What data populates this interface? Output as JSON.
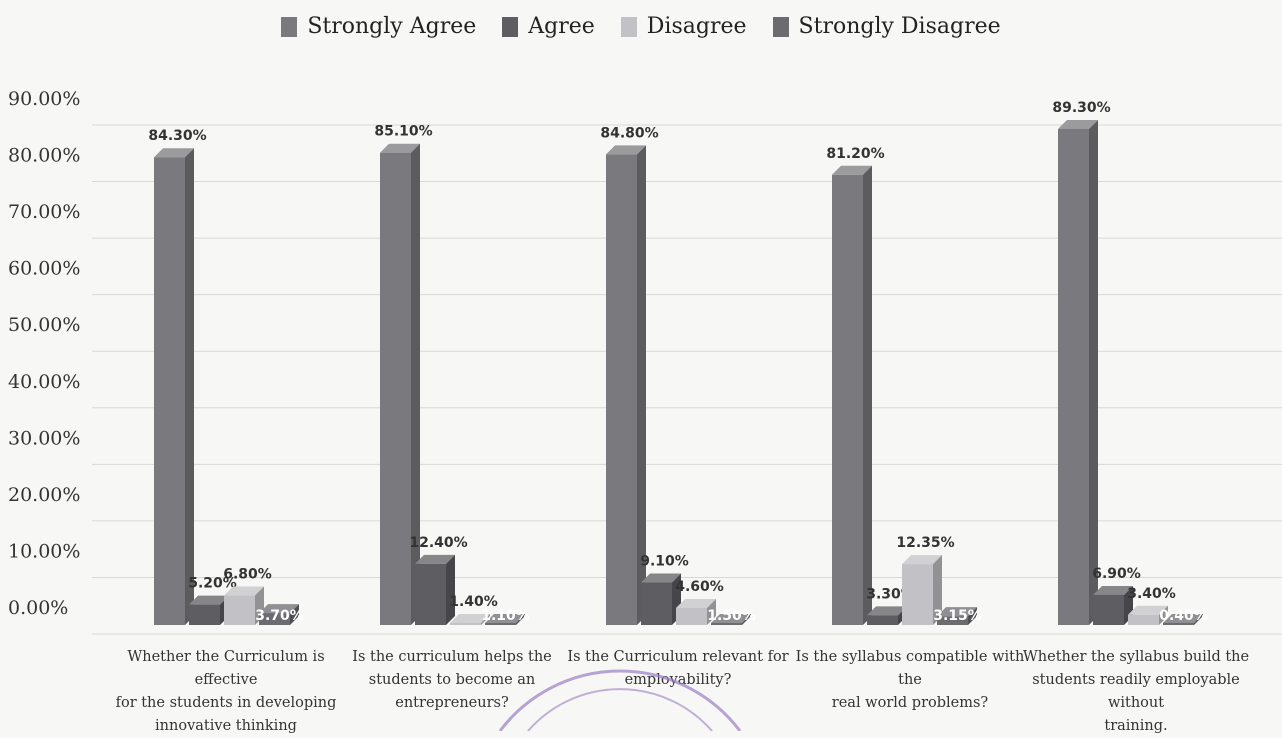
{
  "colors": {
    "strongly_agree": "#7a7a7e",
    "agree": "#5d5d62",
    "disagree": "#c2c2c6",
    "strongly_disagree": "#6b6b70"
  },
  "chart_data": {
    "type": "bar",
    "y_ticks": [
      "90.00%",
      "80.00%",
      "70.00%",
      "60.00%",
      "50.00%",
      "40.00%",
      "30.00%",
      "20.00%",
      "10.00%",
      "0.00%"
    ],
    "ylim": [
      0,
      90
    ],
    "grid": true,
    "legend_position": "top-center",
    "categories": [
      "Whether the Curriculum is effective for the students in developing innovative thinking",
      "Is the curriculum helps the students to become an entrepreneurs?",
      "Is the Curriculum relevant for employability?",
      "Is the syllabus compatible with the real world problems?",
      "Whether the syllabus build the students readily employable without training."
    ],
    "category_lines": [
      [
        "Whether the Curriculum is effective",
        "for the students in developing",
        "innovative thinking"
      ],
      [
        "Is the curriculum helps the",
        "students to become an",
        "entrepreneurs?"
      ],
      [
        "Is the Curriculum relevant for",
        "employability?"
      ],
      [
        "Is the syllabus compatible with the",
        "real world problems?"
      ],
      [
        "Whether the syllabus build the",
        "students readily employable without",
        "training."
      ]
    ],
    "series": [
      {
        "name": "Strongly Agree",
        "values": [
          84.3,
          85.1,
          84.8,
          81.2,
          89.3
        ],
        "labels": [
          "84.30%",
          "85.10%",
          "84.80%",
          "81.20%",
          "89.30%"
        ]
      },
      {
        "name": "Agree",
        "values": [
          5.2,
          12.4,
          9.1,
          3.3,
          6.9
        ],
        "labels": [
          "5.20%",
          "12.40%",
          "9.10%",
          "3.30%",
          "6.90%"
        ]
      },
      {
        "name": "Disagree",
        "values": [
          6.8,
          1.4,
          4.6,
          12.35,
          3.4
        ],
        "labels": [
          "6.80%",
          "1.40%",
          "4.60%",
          "12.35%",
          "3.40%"
        ]
      },
      {
        "name": "Strongly Disagree",
        "values": [
          3.7,
          1.1,
          1.5,
          3.15,
          0.4
        ],
        "labels": [
          "3.70%",
          "1.10%",
          "1.50%",
          "3.15%",
          "0.40%"
        ]
      }
    ]
  }
}
